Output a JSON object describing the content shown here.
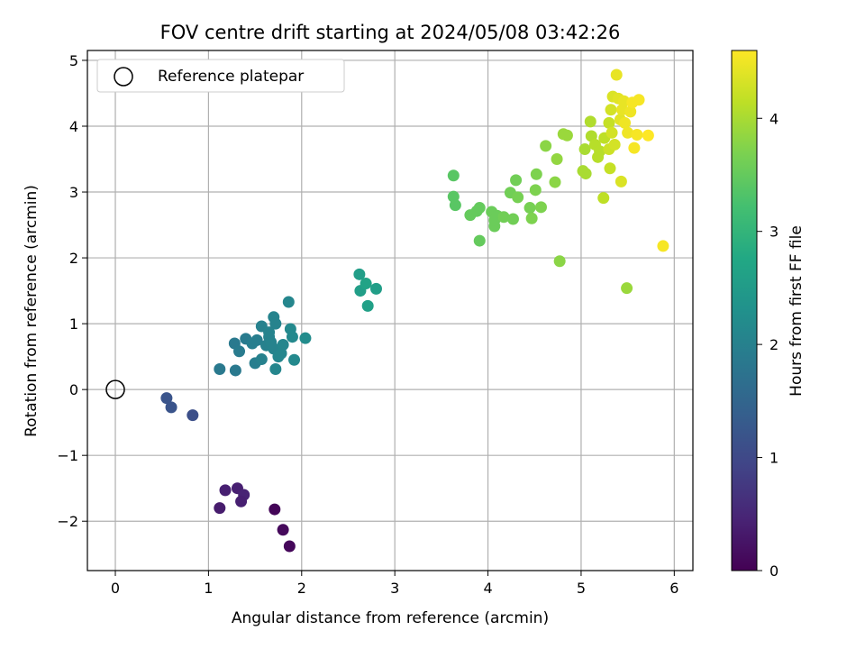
{
  "chart_data": {
    "type": "scatter",
    "title": "FOV centre drift starting at 2024/05/08 03:42:26",
    "xlabel": "Angular distance from reference (arcmin)",
    "ylabel": "Rotation from reference (arcmin)",
    "xlim": [
      -0.3,
      6.2
    ],
    "ylim": [
      -2.75,
      5.15
    ],
    "xticks": [
      0,
      1,
      2,
      3,
      4,
      5,
      6
    ],
    "yticks": [
      -2,
      -1,
      0,
      1,
      2,
      3,
      4,
      5
    ],
    "grid": true,
    "colormap": "viridis",
    "colorbar": {
      "label": "Hours from first FF file",
      "range": [
        0,
        4.6
      ],
      "ticks": [
        0,
        1,
        2,
        3,
        4
      ]
    },
    "legend": {
      "placement": "top-left",
      "entries": [
        "Reference platepar"
      ]
    },
    "reference_point": {
      "x": 0,
      "y": 0,
      "name": "Reference platepar"
    },
    "points": [
      {
        "x": 1.71,
        "y": -1.82,
        "c": 0.05
      },
      {
        "x": 1.8,
        "y": -2.13,
        "c": 0.1
      },
      {
        "x": 1.87,
        "y": -2.38,
        "c": 0.08
      },
      {
        "x": 1.12,
        "y": -1.8,
        "c": 0.35
      },
      {
        "x": 1.18,
        "y": -1.53,
        "c": 0.4
      },
      {
        "x": 1.31,
        "y": -1.5,
        "c": 0.4
      },
      {
        "x": 1.38,
        "y": -1.6,
        "c": 0.45
      },
      {
        "x": 1.35,
        "y": -1.7,
        "c": 0.4
      },
      {
        "x": 0.55,
        "y": -0.13,
        "c": 1.2
      },
      {
        "x": 0.6,
        "y": -0.27,
        "c": 1.2
      },
      {
        "x": 0.83,
        "y": -0.39,
        "c": 1.1
      },
      {
        "x": 1.12,
        "y": 0.31,
        "c": 1.85
      },
      {
        "x": 1.29,
        "y": 0.29,
        "c": 1.85
      },
      {
        "x": 1.28,
        "y": 0.7,
        "c": 1.85
      },
      {
        "x": 1.33,
        "y": 0.58,
        "c": 1.9
      },
      {
        "x": 1.4,
        "y": 0.77,
        "c": 1.9
      },
      {
        "x": 1.47,
        "y": 0.7,
        "c": 1.95
      },
      {
        "x": 1.52,
        "y": 0.75,
        "c": 1.95
      },
      {
        "x": 1.5,
        "y": 0.4,
        "c": 1.95
      },
      {
        "x": 1.57,
        "y": 0.46,
        "c": 2.0
      },
      {
        "x": 1.57,
        "y": 0.96,
        "c": 2.0
      },
      {
        "x": 1.62,
        "y": 0.67,
        "c": 2.0
      },
      {
        "x": 1.65,
        "y": 0.8,
        "c": 2.05
      },
      {
        "x": 1.67,
        "y": 0.72,
        "c": 2.05
      },
      {
        "x": 1.7,
        "y": 1.1,
        "c": 2.05
      },
      {
        "x": 1.72,
        "y": 1.0,
        "c": 2.05
      },
      {
        "x": 1.72,
        "y": 0.31,
        "c": 2.1
      },
      {
        "x": 1.7,
        "y": 0.62,
        "c": 2.05
      },
      {
        "x": 1.75,
        "y": 0.5,
        "c": 2.1
      },
      {
        "x": 1.78,
        "y": 0.55,
        "c": 2.1
      },
      {
        "x": 1.8,
        "y": 0.68,
        "c": 2.1
      },
      {
        "x": 1.86,
        "y": 1.33,
        "c": 2.1
      },
      {
        "x": 1.88,
        "y": 0.92,
        "c": 2.15
      },
      {
        "x": 1.9,
        "y": 0.8,
        "c": 2.15
      },
      {
        "x": 1.92,
        "y": 0.45,
        "c": 2.15
      },
      {
        "x": 2.04,
        "y": 0.78,
        "c": 2.2
      },
      {
        "x": 1.65,
        "y": 0.87,
        "c": 2.05
      },
      {
        "x": 2.62,
        "y": 1.75,
        "c": 2.55
      },
      {
        "x": 2.63,
        "y": 1.5,
        "c": 2.55
      },
      {
        "x": 2.69,
        "y": 1.61,
        "c": 2.65
      },
      {
        "x": 2.71,
        "y": 1.27,
        "c": 2.6
      },
      {
        "x": 2.8,
        "y": 1.53,
        "c": 2.55
      },
      {
        "x": 3.63,
        "y": 3.25,
        "c": 3.4
      },
      {
        "x": 3.63,
        "y": 2.93,
        "c": 3.4
      },
      {
        "x": 3.65,
        "y": 2.8,
        "c": 3.4
      },
      {
        "x": 3.81,
        "y": 2.65,
        "c": 3.5
      },
      {
        "x": 3.88,
        "y": 2.71,
        "c": 3.5
      },
      {
        "x": 3.91,
        "y": 2.76,
        "c": 3.5
      },
      {
        "x": 3.91,
        "y": 2.26,
        "c": 3.5
      },
      {
        "x": 4.04,
        "y": 2.7,
        "c": 3.55
      },
      {
        "x": 4.07,
        "y": 2.48,
        "c": 3.55
      },
      {
        "x": 4.07,
        "y": 2.57,
        "c": 3.55
      },
      {
        "x": 4.1,
        "y": 2.64,
        "c": 3.55
      },
      {
        "x": 4.17,
        "y": 2.62,
        "c": 3.6
      },
      {
        "x": 4.24,
        "y": 2.99,
        "c": 3.6
      },
      {
        "x": 4.27,
        "y": 2.59,
        "c": 3.6
      },
      {
        "x": 4.3,
        "y": 3.18,
        "c": 3.6
      },
      {
        "x": 4.32,
        "y": 2.92,
        "c": 3.65
      },
      {
        "x": 4.45,
        "y": 2.76,
        "c": 3.65
      },
      {
        "x": 4.47,
        "y": 2.6,
        "c": 3.7
      },
      {
        "x": 4.51,
        "y": 3.03,
        "c": 3.7
      },
      {
        "x": 4.52,
        "y": 3.27,
        "c": 3.7
      },
      {
        "x": 4.57,
        "y": 2.77,
        "c": 3.7
      },
      {
        "x": 4.62,
        "y": 3.7,
        "c": 3.8
      },
      {
        "x": 4.72,
        "y": 3.15,
        "c": 3.8
      },
      {
        "x": 4.74,
        "y": 3.5,
        "c": 3.85
      },
      {
        "x": 4.77,
        "y": 1.95,
        "c": 3.8
      },
      {
        "x": 4.81,
        "y": 3.88,
        "c": 3.9
      },
      {
        "x": 4.85,
        "y": 3.86,
        "c": 3.9
      },
      {
        "x": 5.02,
        "y": 3.32,
        "c": 4.0
      },
      {
        "x": 5.04,
        "y": 3.65,
        "c": 4.0
      },
      {
        "x": 5.05,
        "y": 3.28,
        "c": 4.0
      },
      {
        "x": 5.1,
        "y": 4.07,
        "c": 4.05
      },
      {
        "x": 5.11,
        "y": 3.85,
        "c": 4.05
      },
      {
        "x": 5.15,
        "y": 3.72,
        "c": 4.1
      },
      {
        "x": 5.18,
        "y": 3.53,
        "c": 4.1
      },
      {
        "x": 5.2,
        "y": 3.62,
        "c": 4.1
      },
      {
        "x": 5.24,
        "y": 2.91,
        "c": 4.15
      },
      {
        "x": 5.25,
        "y": 3.82,
        "c": 4.15
      },
      {
        "x": 5.3,
        "y": 4.05,
        "c": 4.2
      },
      {
        "x": 5.3,
        "y": 3.65,
        "c": 4.25
      },
      {
        "x": 5.31,
        "y": 3.36,
        "c": 4.2
      },
      {
        "x": 5.32,
        "y": 4.25,
        "c": 4.3
      },
      {
        "x": 5.33,
        "y": 3.9,
        "c": 4.3
      },
      {
        "x": 5.34,
        "y": 4.45,
        "c": 4.35
      },
      {
        "x": 5.36,
        "y": 3.72,
        "c": 4.3
      },
      {
        "x": 5.38,
        "y": 4.78,
        "c": 4.45
      },
      {
        "x": 5.4,
        "y": 4.42,
        "c": 4.4
      },
      {
        "x": 5.42,
        "y": 4.1,
        "c": 4.4
      },
      {
        "x": 5.43,
        "y": 3.16,
        "c": 4.35
      },
      {
        "x": 5.44,
        "y": 4.25,
        "c": 4.45
      },
      {
        "x": 5.46,
        "y": 4.38,
        "c": 4.45
      },
      {
        "x": 5.47,
        "y": 4.05,
        "c": 4.5
      },
      {
        "x": 5.49,
        "y": 1.54,
        "c": 3.9
      },
      {
        "x": 5.5,
        "y": 3.9,
        "c": 4.5
      },
      {
        "x": 5.53,
        "y": 4.22,
        "c": 4.5
      },
      {
        "x": 5.55,
        "y": 4.36,
        "c": 4.55
      },
      {
        "x": 5.57,
        "y": 3.67,
        "c": 4.55
      },
      {
        "x": 5.6,
        "y": 3.87,
        "c": 4.55
      },
      {
        "x": 5.62,
        "y": 4.4,
        "c": 4.55
      },
      {
        "x": 5.72,
        "y": 3.86,
        "c": 4.6
      },
      {
        "x": 5.88,
        "y": 2.18,
        "c": 4.55
      }
    ]
  }
}
